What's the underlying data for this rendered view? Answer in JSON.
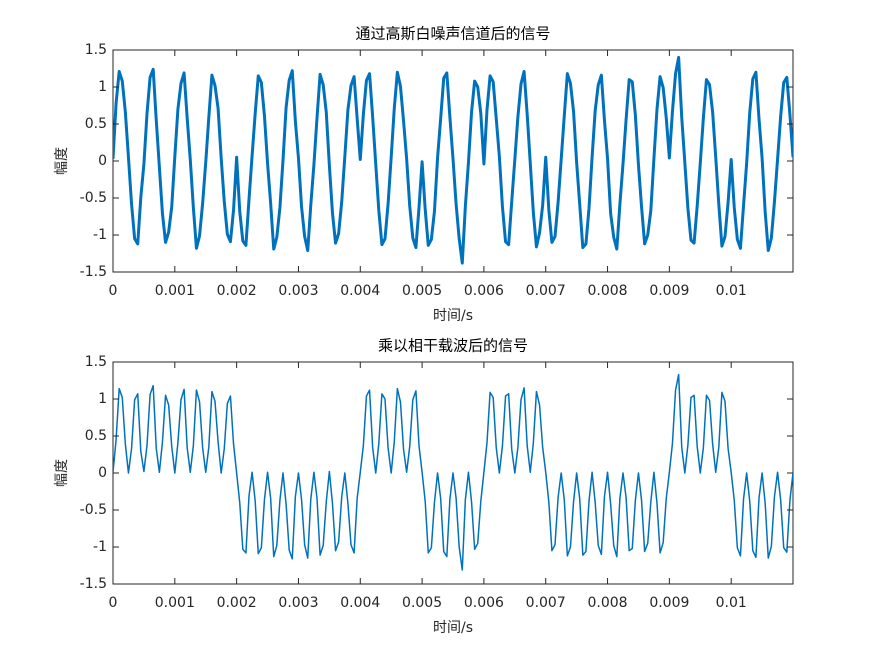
{
  "chart_data": [
    {
      "type": "line",
      "title": "通过高斯白噪声信道后的信号",
      "xlabel": "时间/s",
      "ylabel": "幅度",
      "color": "#0072bd",
      "xlim": [
        0,
        0.011
      ],
      "xticks": [
        0,
        0.001,
        0.002,
        0.003,
        0.004,
        0.005,
        0.006,
        0.007,
        0.008,
        0.009,
        0.01
      ],
      "ylim": [
        -1.5,
        1.5
      ],
      "yticks": [
        -1.5,
        -1,
        -0.5,
        0,
        0.5,
        1,
        1.5
      ],
      "x": [
        0,
        5e-05,
        0.0001,
        0.00015,
        0.0002,
        0.00025,
        0.0003,
        0.00035,
        0.0004,
        0.00045,
        0.0005,
        0.00055,
        0.0006,
        0.00065,
        0.0007,
        0.00075,
        0.0008,
        0.00085,
        0.0009,
        0.00095,
        0.001,
        0.00105,
        0.0011,
        0.00115,
        0.0012,
        0.00125,
        0.0013,
        0.00135,
        0.0014,
        0.00145,
        0.0015,
        0.00155,
        0.0016,
        0.00165,
        0.0017,
        0.00175,
        0.0018,
        0.00185,
        0.0019,
        0.00195,
        0.002,
        0.00205,
        0.0021,
        0.00215,
        0.0022,
        0.00225,
        0.0023,
        0.00235,
        0.0024,
        0.00245,
        0.0025,
        0.00255,
        0.0026,
        0.00265,
        0.0027,
        0.00275,
        0.0028,
        0.00285,
        0.0029,
        0.00295,
        0.003,
        0.00305,
        0.0031,
        0.00315,
        0.0032,
        0.00325,
        0.0033,
        0.00335,
        0.0034,
        0.00345,
        0.0035,
        0.00355,
        0.0036,
        0.00365,
        0.0037,
        0.00375,
        0.0038,
        0.00385,
        0.0039,
        0.00395,
        0.004,
        0.00405,
        0.0041,
        0.00415,
        0.0042,
        0.00425,
        0.0043,
        0.00435,
        0.0044,
        0.00445,
        0.0045,
        0.00455,
        0.0046,
        0.00465,
        0.0047,
        0.00475,
        0.0048,
        0.00485,
        0.0049,
        0.00495,
        0.005,
        0.00505,
        0.0051,
        0.00515,
        0.0052,
        0.00525,
        0.0053,
        0.00535,
        0.0054,
        0.00545,
        0.0055,
        0.00555,
        0.0056,
        0.00565,
        0.0057,
        0.00575,
        0.0058,
        0.00585,
        0.0059,
        0.00595,
        0.006,
        0.00605,
        0.0061,
        0.00615,
        0.0062,
        0.00625,
        0.0063,
        0.00635,
        0.0064,
        0.00645,
        0.0065,
        0.00655,
        0.0066,
        0.00665,
        0.0067,
        0.00675,
        0.0068,
        0.00685,
        0.0069,
        0.00695,
        0.007,
        0.00705,
        0.0071,
        0.00715,
        0.0072,
        0.00725,
        0.0073,
        0.00735,
        0.0074,
        0.00745,
        0.0075,
        0.00755,
        0.0076,
        0.00765,
        0.0077,
        0.00775,
        0.0078,
        0.00785,
        0.0079,
        0.00795,
        0.008,
        0.00805,
        0.0081,
        0.00815,
        0.0082,
        0.00825,
        0.0083,
        0.00835,
        0.0084,
        0.00845,
        0.0085,
        0.00855,
        0.0086,
        0.00865,
        0.0087,
        0.00875,
        0.0088,
        0.00885,
        0.0089,
        0.00895,
        0.009,
        0.00905,
        0.0091,
        0.00915,
        0.0092,
        0.00925,
        0.0093,
        0.00935,
        0.0094,
        0.00945,
        0.0095,
        0.00955,
        0.0096,
        0.00965,
        0.0097,
        0.00975,
        0.0098,
        0.00985,
        0.0099,
        0.00995,
        0.01,
        0.01005,
        0.0101,
        0.01015,
        0.0102,
        0.01025,
        0.0103,
        0.01035,
        0.0104,
        0.01045,
        0.0105,
        0.01055,
        0.0106,
        0.01065,
        0.0107,
        0.01075,
        0.0108,
        0.01085,
        0.0109,
        0.01095,
        0.011
      ],
      "values": [
        0.03,
        0.78,
        1.21,
        1.08,
        0.66,
        0.05,
        -0.58,
        -1.05,
        -1.12,
        -0.49,
        -0.04,
        0.64,
        1.13,
        1.24,
        0.55,
        -0.08,
        -0.71,
        -1.1,
        -0.96,
        -0.62,
        0.06,
        0.7,
        1.05,
        1.19,
        0.58,
        0.02,
        -0.63,
        -1.18,
        -1.01,
        -0.57,
        -0.02,
        0.59,
        1.16,
        1.02,
        0.71,
        0.04,
        -0.55,
        -0.99,
        -1.09,
        -0.66,
        0.05,
        -0.68,
        -1.08,
        -1.14,
        -0.52,
        0.07,
        0.64,
        1.15,
        1.06,
        0.61,
        -0.03,
        -0.57,
        -1.19,
        -1.03,
        -0.63,
        0.01,
        0.72,
        1.09,
        1.22,
        0.54,
        0.04,
        -0.62,
        -1.02,
        -1.21,
        -0.59,
        -0.05,
        0.58,
        1.17,
        1.03,
        0.66,
        -0.06,
        -0.7,
        -1.11,
        -0.98,
        -0.55,
        0.06,
        0.69,
        1.02,
        1.14,
        0.57,
        0.02,
        0.63,
        1.09,
        1.18,
        0.6,
        -0.04,
        -0.67,
        -1.13,
        -1.05,
        -0.58,
        0.05,
        0.71,
        1.2,
        1.01,
        0.54,
        0.03,
        -0.61,
        -1.04,
        -1.17,
        -0.63,
        -0.01,
        -0.65,
        -1.14,
        -1.06,
        -0.68,
        0.04,
        0.57,
        1.12,
        1.19,
        0.59,
        0.03,
        -0.58,
        -1.05,
        -1.38,
        -0.61,
        -0.02,
        0.66,
        1.08,
        1.0,
        0.64,
        -0.04,
        0.69,
        1.15,
        1.07,
        0.57,
        0.06,
        -0.62,
        -1.09,
        -1.13,
        -0.55,
        0.02,
        0.6,
        1.04,
        1.21,
        0.63,
        -0.03,
        -0.7,
        -1.16,
        -0.97,
        -0.6,
        0.05,
        -0.66,
        -1.1,
        -1.02,
        -0.56,
        0.02,
        0.61,
        1.18,
        1.05,
        0.67,
        -0.02,
        -0.59,
        -1.17,
        -1.12,
        -0.64,
        0.05,
        0.68,
        1.03,
        1.16,
        0.55,
        0.03,
        -0.71,
        -1.03,
        -1.19,
        -0.58,
        -0.04,
        0.56,
        1.1,
        1.07,
        0.62,
        -0.05,
        -0.62,
        -1.12,
        -1.0,
        -0.67,
        0.03,
        0.7,
        1.14,
        0.99,
        0.58,
        0.04,
        0.67,
        1.18,
        1.4,
        0.59,
        -0.02,
        -0.64,
        -1.07,
        -1.11,
        -0.61,
        -0.03,
        0.58,
        1.1,
        1.03,
        0.66,
        0.05,
        -0.59,
        -1.15,
        -1.02,
        -0.56,
        0.02,
        -0.63,
        -1.06,
        -1.18,
        -0.6,
        -0.03,
        0.65,
        1.11,
        1.2,
        0.57,
        0.04,
        -0.69,
        -1.21,
        -1.04,
        -0.55,
        0.02,
        0.6,
        1.06,
        1.13,
        0.63,
        0.05
      ]
    },
    {
      "type": "line",
      "title": "乘以相干载波后的信号",
      "xlabel": "时间/s",
      "ylabel": "幅度",
      "color": "#0072bd",
      "xlim": [
        0,
        0.011
      ],
      "xticks": [
        0,
        0.001,
        0.002,
        0.003,
        0.004,
        0.005,
        0.006,
        0.007,
        0.008,
        0.009,
        0.01
      ],
      "ylim": [
        -1.5,
        1.5
      ],
      "yticks": [
        -1.5,
        -1,
        -0.5,
        0,
        0.5,
        1,
        1.5
      ],
      "x": [
        0,
        5e-05,
        0.0001,
        0.00015,
        0.0002,
        0.00025,
        0.0003,
        0.00035,
        0.0004,
        0.00045,
        0.0005,
        0.00055,
        0.0006,
        0.00065,
        0.0007,
        0.00075,
        0.0008,
        0.00085,
        0.0009,
        0.00095,
        0.001,
        0.00105,
        0.0011,
        0.00115,
        0.0012,
        0.00125,
        0.0013,
        0.00135,
        0.0014,
        0.00145,
        0.0015,
        0.00155,
        0.0016,
        0.00165,
        0.0017,
        0.00175,
        0.0018,
        0.00185,
        0.0019,
        0.00195,
        0.002,
        0.00205,
        0.0021,
        0.00215,
        0.0022,
        0.00225,
        0.0023,
        0.00235,
        0.0024,
        0.00245,
        0.0025,
        0.00255,
        0.0026,
        0.00265,
        0.0027,
        0.00275,
        0.0028,
        0.00285,
        0.0029,
        0.00295,
        0.003,
        0.00305,
        0.0031,
        0.00315,
        0.0032,
        0.00325,
        0.0033,
        0.00335,
        0.0034,
        0.00345,
        0.0035,
        0.00355,
        0.0036,
        0.00365,
        0.0037,
        0.00375,
        0.0038,
        0.00385,
        0.0039,
        0.00395,
        0.004,
        0.00405,
        0.0041,
        0.00415,
        0.0042,
        0.00425,
        0.0043,
        0.00435,
        0.0044,
        0.00445,
        0.0045,
        0.00455,
        0.0046,
        0.00465,
        0.0047,
        0.00475,
        0.0048,
        0.00485,
        0.0049,
        0.00495,
        0.005,
        0.00505,
        0.0051,
        0.00515,
        0.0052,
        0.00525,
        0.0053,
        0.00535,
        0.0054,
        0.00545,
        0.0055,
        0.00555,
        0.0056,
        0.00565,
        0.0057,
        0.00575,
        0.0058,
        0.00585,
        0.0059,
        0.00595,
        0.006,
        0.00605,
        0.0061,
        0.00615,
        0.0062,
        0.00625,
        0.0063,
        0.00635,
        0.0064,
        0.00645,
        0.0065,
        0.00655,
        0.0066,
        0.00665,
        0.0067,
        0.00675,
        0.0068,
        0.00685,
        0.0069,
        0.00695,
        0.007,
        0.00705,
        0.0071,
        0.00715,
        0.0072,
        0.00725,
        0.0073,
        0.00735,
        0.0074,
        0.00745,
        0.0075,
        0.00755,
        0.0076,
        0.00765,
        0.0077,
        0.00775,
        0.0078,
        0.00785,
        0.0079,
        0.00795,
        0.008,
        0.00805,
        0.0081,
        0.00815,
        0.0082,
        0.00825,
        0.0083,
        0.00835,
        0.0084,
        0.00845,
        0.0085,
        0.00855,
        0.0086,
        0.00865,
        0.0087,
        0.00875,
        0.0088,
        0.00885,
        0.0089,
        0.00895,
        0.009,
        0.00905,
        0.0091,
        0.00915,
        0.0092,
        0.00925,
        0.0093,
        0.00935,
        0.0094,
        0.00945,
        0.0095,
        0.00955,
        0.0096,
        0.00965,
        0.0097,
        0.00975,
        0.0098,
        0.00985,
        0.0099,
        0.00995,
        0.01,
        0.01005,
        0.0101,
        0.01015,
        0.0102,
        0.01025,
        0.0103,
        0.01035,
        0.0104,
        0.01045,
        0.0105,
        0.01055,
        0.0106,
        0.01065,
        0.0107,
        0.01075,
        0.0108,
        0.01085,
        0.0109,
        0.01095,
        0.011
      ],
      "values": [
        0.01,
        0.45,
        1.14,
        1.02,
        0.39,
        0.0,
        0.33,
        0.99,
        1.07,
        0.29,
        0.02,
        0.37,
        1.06,
        1.18,
        0.33,
        0.01,
        0.42,
        1.05,
        0.92,
        0.36,
        0.0,
        0.41,
        0.99,
        1.13,
        0.34,
        0.01,
        0.37,
        1.12,
        0.96,
        0.34,
        0.01,
        0.35,
        1.1,
        0.97,
        0.42,
        0.0,
        0.33,
        0.94,
        1.04,
        0.39,
        0.0,
        -0.4,
        -1.03,
        -1.08,
        -0.31,
        0.01,
        -0.38,
        -1.09,
        -1.01,
        -0.36,
        0.01,
        -0.34,
        -1.13,
        -0.98,
        -0.37,
        0.0,
        -0.42,
        -1.04,
        -1.16,
        -0.32,
        0.0,
        -0.36,
        -0.97,
        -1.15,
        -0.35,
        0.01,
        -0.34,
        -1.11,
        -0.98,
        -0.39,
        0.02,
        -0.41,
        -1.05,
        -0.93,
        -0.32,
        0.0,
        -0.41,
        -0.97,
        -1.08,
        -0.34,
        0.01,
        0.37,
        1.04,
        1.12,
        0.35,
        0.0,
        0.4,
        1.07,
        1.0,
        0.34,
        0.0,
        0.42,
        1.14,
        0.96,
        0.32,
        0.01,
        0.36,
        0.99,
        1.11,
        0.37,
        0.01,
        -0.38,
        -1.08,
        -1.01,
        -0.4,
        0.0,
        -0.34,
        -1.06,
        -1.13,
        -0.35,
        0.0,
        -0.34,
        -1.0,
        -1.31,
        -0.36,
        0.01,
        -0.39,
        -1.03,
        -0.95,
        -0.38,
        0.01,
        0.41,
        1.09,
        1.02,
        0.34,
        0.0,
        0.37,
        1.04,
        1.07,
        0.32,
        0.0,
        0.35,
        0.99,
        1.15,
        0.37,
        0.01,
        0.41,
        1.1,
        0.92,
        0.35,
        0.01,
        -0.39,
        -1.05,
        -0.97,
        -0.33,
        0.0,
        -0.36,
        -1.12,
        -1.0,
        -0.39,
        0.0,
        -0.35,
        -1.11,
        -1.06,
        -0.38,
        0.01,
        -0.4,
        -0.98,
        -1.1,
        -0.32,
        0.01,
        -0.42,
        -0.98,
        -1.13,
        -0.34,
        0.0,
        -0.33,
        -1.05,
        -1.02,
        -0.37,
        0.0,
        -0.37,
        -1.06,
        -0.95,
        -0.39,
        0.01,
        -0.41,
        -1.08,
        -0.94,
        -0.34,
        0.01,
        0.4,
        1.12,
        1.33,
        0.35,
        0.0,
        0.38,
        1.02,
        1.05,
        0.36,
        0.0,
        0.34,
        1.05,
        0.98,
        0.39,
        0.01,
        0.35,
        1.09,
        0.97,
        0.33,
        0.01,
        -0.37,
        -1.01,
        -1.12,
        -0.35,
        0.0,
        -0.38,
        -1.05,
        -1.14,
        -0.34,
        0.0,
        -0.41,
        -1.15,
        -0.99,
        -0.32,
        0.01,
        -0.36,
        -1.01,
        -1.07,
        -0.37,
        0.0
      ]
    }
  ]
}
